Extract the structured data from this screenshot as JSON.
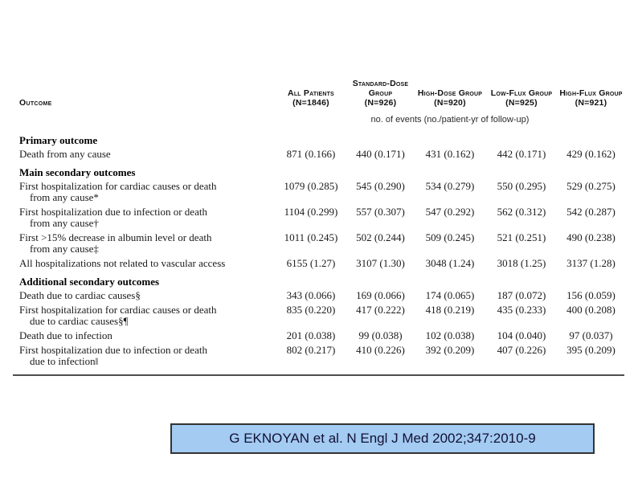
{
  "table": {
    "outcome_header": "Outcome",
    "columns": [
      {
        "name": "All Patients",
        "n": "(N=1846)"
      },
      {
        "name": "Standard-Dose Group",
        "n": "(N=926)"
      },
      {
        "name": "High-Dose Group",
        "n": "(N=920)"
      },
      {
        "name": "Low-Flux Group",
        "n": "(N=925)"
      },
      {
        "name": "High-Flux Group",
        "n": "(N=921)"
      }
    ],
    "subtitle": "no. of events (no./patient-yr of follow-up)",
    "rows": [
      {
        "type": "section",
        "label": "Primary outcome"
      },
      {
        "type": "data",
        "label": "Death from any cause",
        "label2": "",
        "values": [
          "871 (0.166)",
          "440 (0.171)",
          "431 (0.162)",
          "442 (0.171)",
          "429 (0.162)"
        ]
      },
      {
        "type": "section",
        "label": "Main secondary outcomes"
      },
      {
        "type": "data",
        "label": "First hospitalization for cardiac causes or death",
        "label2": "from any cause*",
        "values": [
          "1079 (0.285)",
          "545 (0.290)",
          "534 (0.279)",
          "550 (0.295)",
          "529 (0.275)"
        ]
      },
      {
        "type": "data",
        "label": "First hospitalization due to infection or death",
        "label2": "from any cause†",
        "values": [
          "1104 (0.299)",
          "557 (0.307)",
          "547 (0.292)",
          "562 (0.312)",
          "542 (0.287)"
        ]
      },
      {
        "type": "data",
        "label": "First >15% decrease in albumin level or death",
        "label2": "from any cause‡",
        "values": [
          "1011 (0.245)",
          "502 (0.244)",
          "509 (0.245)",
          "521 (0.251)",
          "490 (0.238)"
        ]
      },
      {
        "type": "data",
        "label": "All hospitalizations not related to vascular access",
        "label2": "",
        "values": [
          "6155 (1.27)",
          "3107 (1.30)",
          "3048 (1.24)",
          "3018 (1.25)",
          "3137 (1.28)"
        ]
      },
      {
        "type": "section",
        "label": "Additional secondary outcomes"
      },
      {
        "type": "data",
        "label": "Death due to cardiac causes§",
        "label2": "",
        "values": [
          "343 (0.066)",
          "169 (0.066)",
          "174 (0.065)",
          "187 (0.072)",
          "156 (0.059)"
        ]
      },
      {
        "type": "data",
        "label": "First hospitalization for cardiac causes or death",
        "label2": "due to cardiac causes§¶",
        "values": [
          "835 (0.220)",
          "417 (0.222)",
          "418 (0.219)",
          "435 (0.233)",
          "400 (0.208)"
        ]
      },
      {
        "type": "data",
        "label": "Death due to infection",
        "label2": "",
        "values": [
          "201 (0.038)",
          "99 (0.038)",
          "102 (0.038)",
          "104 (0.040)",
          "97 (0.037)"
        ]
      },
      {
        "type": "data",
        "label": "First hospitalization due to infection or death",
        "label2": "due to infection‖",
        "values": [
          "802 (0.217)",
          "410 (0.226)",
          "392 (0.209)",
          "407 (0.226)",
          "395 (0.209)"
        ]
      }
    ]
  },
  "citation": {
    "text": "G EKNOYAN et al. N Engl J Med 2002;347:2010-9"
  },
  "colors": {
    "citation_bg": "#a4cbf2",
    "citation_border": "#333333",
    "rule": "#4d4d4d"
  }
}
